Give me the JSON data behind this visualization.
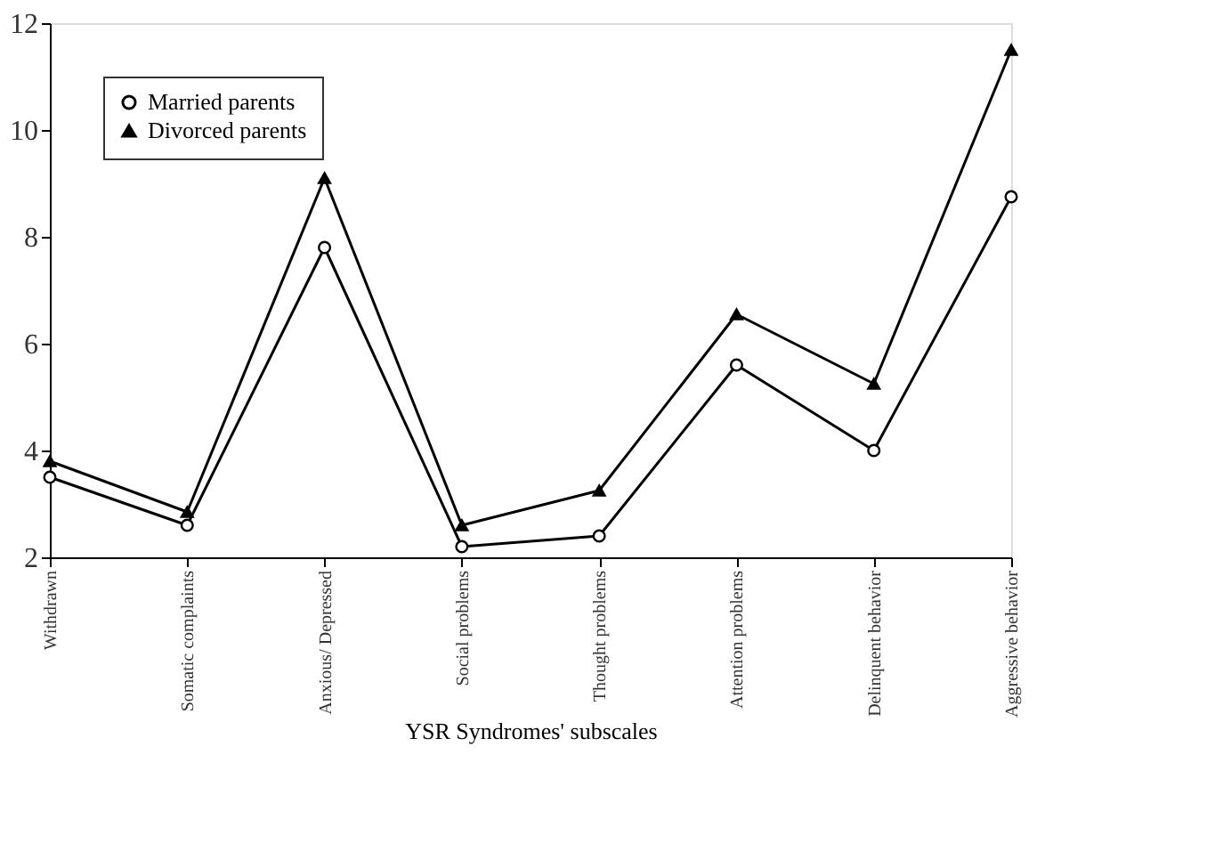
{
  "chart_data": {
    "type": "line",
    "xlabel": "YSR Syndromes' subscales",
    "categories": [
      "Withdrawn",
      "Somatic complaints",
      "Anxious/ Depressed",
      "Social problems",
      "Thought problems",
      "Attention problems",
      "Delinquent behavior",
      "Aggressive behavior"
    ],
    "series": [
      {
        "name": "Married parents",
        "color": "#000000",
        "marker": "circle",
        "values": [
          3.5,
          2.6,
          7.8,
          2.2,
          2.4,
          5.6,
          4.0,
          8.75
        ]
      },
      {
        "name": "Divorced parents",
        "color": "#000000",
        "marker": "triangle",
        "values": [
          3.8,
          2.85,
          9.1,
          2.6,
          3.25,
          6.55,
          5.25,
          11.5
        ]
      }
    ],
    "ylim": [
      2,
      12
    ],
    "yticks": [
      2,
      4,
      6,
      8,
      10,
      12
    ],
    "grid": false,
    "legend": "top left",
    "line_style": "solid"
  }
}
